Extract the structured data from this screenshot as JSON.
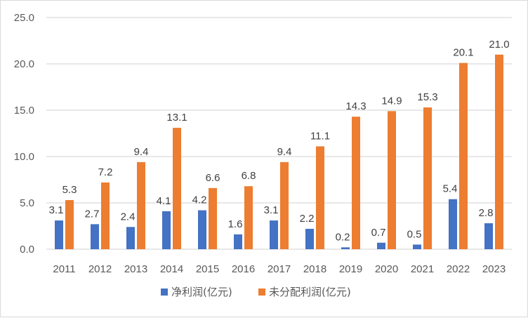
{
  "chart_data": {
    "type": "bar",
    "title": "",
    "xlabel": "",
    "ylabel": "",
    "categories": [
      "2011",
      "2012",
      "2013",
      "2014",
      "2015",
      "2016",
      "2017",
      "2018",
      "2019",
      "2020",
      "2021",
      "2022",
      "2023"
    ],
    "series": [
      {
        "name": "净利润(亿元)",
        "color": "#4472C4",
        "values": [
          3.1,
          2.7,
          2.4,
          4.1,
          4.2,
          1.6,
          3.1,
          2.2,
          0.2,
          0.7,
          0.5,
          5.4,
          2.8
        ]
      },
      {
        "name": "未分配利润(亿元)",
        "color": "#ED7D31",
        "values": [
          5.3,
          7.2,
          9.4,
          13.1,
          6.6,
          6.8,
          9.4,
          11.1,
          14.3,
          14.9,
          15.3,
          20.1,
          21.0
        ]
      }
    ],
    "ylim": [
      0,
      25
    ],
    "yticks": [
      "0.0",
      "5.0",
      "10.0",
      "15.0",
      "20.0",
      "25.0"
    ],
    "grid": true,
    "gridColor": "#d9d9d9",
    "data_labels": true,
    "legend": "bottom"
  }
}
